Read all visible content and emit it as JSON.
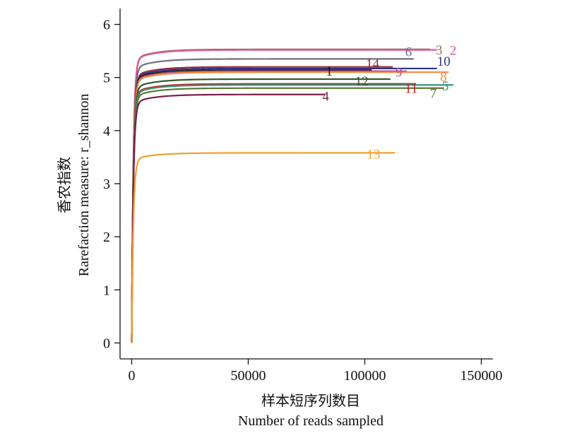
{
  "chart_data": {
    "type": "line",
    "xlabel_cn": "样本短序列数目",
    "xlabel_en": "Number of reads sampled",
    "ylabel_cn": "香农指数",
    "ylabel_en": "Rarefaction measure: r_shannon",
    "xlim": [
      -5000,
      155000
    ],
    "ylim": [
      -0.3,
      6.3
    ],
    "xticks": [
      0,
      50000,
      100000,
      150000
    ],
    "xtick_labels": [
      "0",
      "50000",
      "100000",
      "150000"
    ],
    "yticks": [
      0,
      1,
      2,
      3,
      4,
      5,
      6
    ],
    "ytick_labels": [
      "0",
      "1",
      "2",
      "3",
      "4",
      "5",
      "6"
    ],
    "grid": false,
    "legend": "none",
    "series": [
      {
        "name": "3",
        "color": "#8b7350",
        "plateau": 5.53,
        "max_x": 128000
      },
      {
        "name": "2",
        "color": "#e0529a",
        "plateau": 5.52,
        "max_x": 131000
      },
      {
        "name": "6",
        "color": "#6f6f80",
        "plateau": 5.35,
        "max_x": 121000
      },
      {
        "name": "14",
        "color": "#9a2a3a",
        "plateau": 5.2,
        "max_x": 112000
      },
      {
        "name": "10",
        "color": "#2c3585",
        "plateau": 5.17,
        "max_x": 131000
      },
      {
        "name": "1",
        "color": "#1a1a1a",
        "plateau": 5.14,
        "max_x": 103000
      },
      {
        "name": "9",
        "color": "#b5508e",
        "plateau": 5.12,
        "max_x": 118000
      },
      {
        "name": "8",
        "color": "#f08c3a",
        "plateau": 5.1,
        "max_x": 136000
      },
      {
        "name": "12",
        "color": "#2f5a2a",
        "plateau": 4.97,
        "max_x": 111000
      },
      {
        "name": "11",
        "color": "#c0282a",
        "plateau": 4.88,
        "max_x": 122000
      },
      {
        "name": "5",
        "color": "#3a9080",
        "plateau": 4.86,
        "max_x": 138000
      },
      {
        "name": "7",
        "color": "#5a7a30",
        "plateau": 4.8,
        "max_x": 134000
      },
      {
        "name": "4",
        "color": "#7a1f4a",
        "plateau": 4.68,
        "max_x": 83000
      },
      {
        "name": "13",
        "color": "#f0a030",
        "plateau": 3.58,
        "max_x": 113000
      }
    ]
  }
}
